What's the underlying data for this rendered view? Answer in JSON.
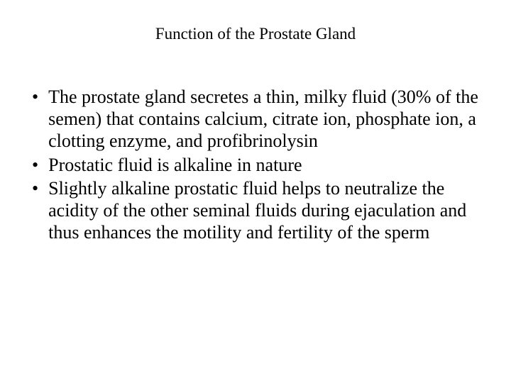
{
  "slide": {
    "title": "Function of the Prostate Gland",
    "title_fontsize": 23,
    "body_fontsize": 26,
    "font_family": "Times New Roman",
    "text_color": "#000000",
    "background_color": "#ffffff",
    "bullets": [
      {
        "marker": "•",
        "text": "The prostate gland secretes a thin, milky fluid (30% of the semen) that contains calcium, citrate ion, phosphate ion, a clotting enzyme, and profibrinolysin"
      },
      {
        "marker": "•",
        "text": "Prostatic fluid is alkaline in nature"
      },
      {
        "marker": "•",
        "text": " Slightly alkaline prostatic fluid helps to neutralize the acidity of the other seminal fluids during ejaculation and thus enhances the motility and fertility of the sperm"
      }
    ]
  }
}
